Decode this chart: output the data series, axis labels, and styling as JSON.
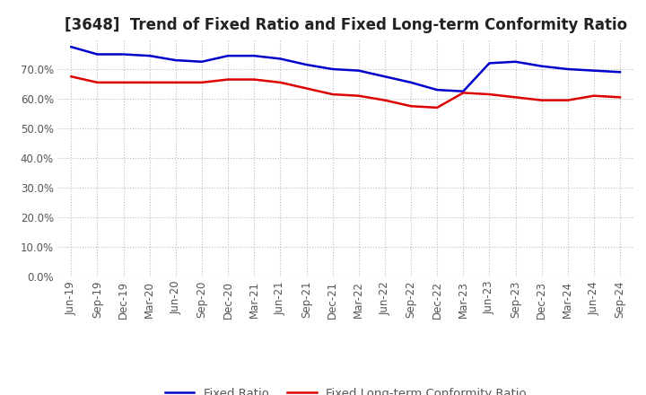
{
  "title": "[3648]  Trend of Fixed Ratio and Fixed Long-term Conformity Ratio",
  "x_labels": [
    "Jun-19",
    "Sep-19",
    "Dec-19",
    "Mar-20",
    "Jun-20",
    "Sep-20",
    "Dec-20",
    "Mar-21",
    "Jun-21",
    "Sep-21",
    "Dec-21",
    "Mar-22",
    "Jun-22",
    "Sep-22",
    "Dec-22",
    "Mar-23",
    "Jun-23",
    "Sep-23",
    "Dec-23",
    "Mar-24",
    "Jun-24",
    "Sep-24"
  ],
  "fixed_ratio": [
    77.5,
    75.0,
    75.0,
    74.5,
    73.0,
    72.5,
    74.5,
    74.5,
    73.5,
    71.5,
    70.0,
    69.5,
    67.5,
    65.5,
    63.0,
    62.5,
    72.0,
    72.5,
    71.0,
    70.0,
    69.5,
    69.0
  ],
  "fixed_lt_ratio": [
    67.5,
    65.5,
    65.5,
    65.5,
    65.5,
    65.5,
    66.5,
    66.5,
    65.5,
    63.5,
    61.5,
    61.0,
    59.5,
    57.5,
    57.0,
    62.0,
    61.5,
    60.5,
    59.5,
    59.5,
    61.0,
    60.5
  ],
  "ylim": [
    0,
    80
  ],
  "yticks": [
    0,
    10,
    20,
    30,
    40,
    50,
    60,
    70
  ],
  "ytick_labels": [
    "0.0%",
    "10.0%",
    "20.0%",
    "30.0%",
    "40.0%",
    "50.0%",
    "60.0%",
    "70.0%"
  ],
  "fixed_ratio_color": "#0000cc",
  "fixed_lt_ratio_color": "#dd0000",
  "background_color": "#ffffff",
  "grid_color": "#bbbbbb",
  "text_color": "#555555",
  "legend_fixed_ratio": "Fixed Ratio",
  "legend_fixed_lt_ratio": "Fixed Long-term Conformity Ratio",
  "title_fontsize": 12,
  "tick_fontsize": 8.5,
  "legend_fontsize": 9.5
}
